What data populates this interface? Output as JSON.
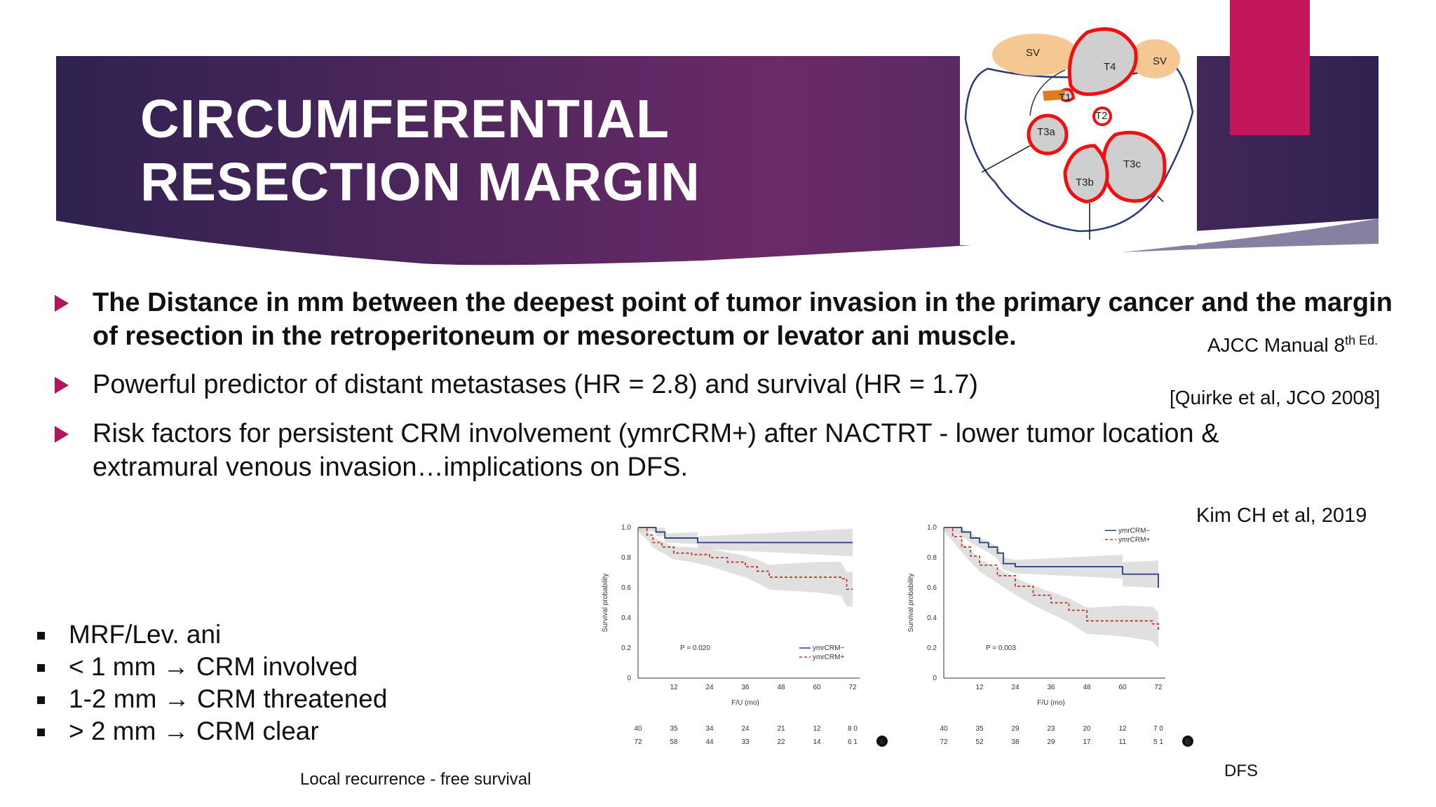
{
  "slide": {
    "title_line1": "CIRCUMFERENTIAL",
    "title_line2": "RESECTION MARGIN",
    "colors": {
      "banner_dark": "#2f2250",
      "banner_accent": "#6b2a68",
      "accent": "#c2185b",
      "bullet": "#b0175a"
    }
  },
  "diagram": {
    "labels": [
      "SV",
      "T4",
      "SV",
      "T1",
      "T2",
      "T3a",
      "T3c",
      "T3b"
    ]
  },
  "bullets": [
    "The Distance in mm between the deepest point of tumor invasion in the primary cancer and the margin of resection in the retroperitoneum or mesorectum or levator ani muscle.",
    "Powerful predictor of distant metastases (HR = 2.8) and survival (HR = 1.7)",
    "Risk factors for persistent CRM involvement (ymrCRM+) after NACTRT - lower tumor location & extramural venous invasion…implications on DFS."
  ],
  "refs": {
    "ajcc": "AJCC Manual 8",
    "ajcc_sup": "th Ed.",
    "quirke": "[Quirke et al, JCO 2008]",
    "kim": "Kim CH et al, 2019"
  },
  "crm_list": [
    "MRF/Lev. ani",
    "< 1 mm → CRM involved",
    "1-2 mm → CRM threatened",
    "> 2 mm → CRM clear"
  ],
  "captions": {
    "left": "Local recurrence - free survival",
    "right": "DFS"
  },
  "chart_data": [
    {
      "type": "line",
      "panel": "A",
      "ylabel": "Survival probability",
      "xlabel": "F/U (mo)",
      "xticks": [
        12,
        24,
        36,
        48,
        60,
        72
      ],
      "yticks": [
        0,
        0.2,
        0.4,
        0.6,
        0.8,
        1.0
      ],
      "ylim": [
        0,
        1.0
      ],
      "xlim": [
        0,
        72
      ],
      "pvalue": "P = 0.020",
      "legend": [
        "ymrCRM−",
        "ymrCRM+"
      ],
      "series": [
        {
          "name": "ymrCRM−",
          "x": [
            0,
            6,
            6,
            9,
            9,
            20,
            20,
            72
          ],
          "y": [
            1.0,
            1.0,
            0.97,
            0.97,
            0.93,
            0.93,
            0.9,
            0.9
          ]
        },
        {
          "name": "ymrCRM+",
          "x": [
            0,
            3,
            5,
            8,
            12,
            18,
            24,
            30,
            36,
            40,
            44,
            56,
            60,
            68,
            70,
            72
          ],
          "y": [
            1.0,
            0.95,
            0.9,
            0.87,
            0.83,
            0.82,
            0.8,
            0.77,
            0.74,
            0.71,
            0.67,
            0.67,
            0.67,
            0.66,
            0.59,
            0.59
          ]
        }
      ],
      "at_risk": [
        [
          "40",
          "35",
          "34",
          "24",
          "21",
          "12",
          "8 0"
        ],
        [
          "72",
          "58",
          "44",
          "33",
          "22",
          "14",
          "6 1"
        ]
      ]
    },
    {
      "type": "line",
      "panel": "B",
      "ylabel": "Survival probability",
      "xlabel": "F/U (mo)",
      "xticks": [
        12,
        24,
        36,
        48,
        60,
        72
      ],
      "yticks": [
        0,
        0.2,
        0.4,
        0.6,
        0.8,
        1.0
      ],
      "ylim": [
        0,
        1.0
      ],
      "xlim": [
        0,
        72
      ],
      "pvalue": "P = 0.003",
      "legend": [
        "ymrCRM−",
        "ymrCRM+"
      ],
      "series": [
        {
          "name": "ymrCRM−",
          "x": [
            0,
            6,
            9,
            12,
            15,
            18,
            20,
            24,
            60,
            60,
            72,
            72
          ],
          "y": [
            1.0,
            0.97,
            0.93,
            0.9,
            0.87,
            0.83,
            0.76,
            0.74,
            0.74,
            0.69,
            0.69,
            0.6
          ]
        },
        {
          "name": "ymrCRM+",
          "x": [
            0,
            3,
            6,
            9,
            12,
            18,
            24,
            30,
            36,
            42,
            48,
            60,
            70,
            72
          ],
          "y": [
            1.0,
            0.94,
            0.87,
            0.81,
            0.75,
            0.68,
            0.61,
            0.55,
            0.5,
            0.45,
            0.38,
            0.38,
            0.36,
            0.32
          ]
        }
      ],
      "at_risk": [
        [
          "40",
          "35",
          "29",
          "23",
          "20",
          "12",
          "7 0"
        ],
        [
          "72",
          "52",
          "38",
          "29",
          "17",
          "11",
          "5 1"
        ]
      ]
    }
  ]
}
